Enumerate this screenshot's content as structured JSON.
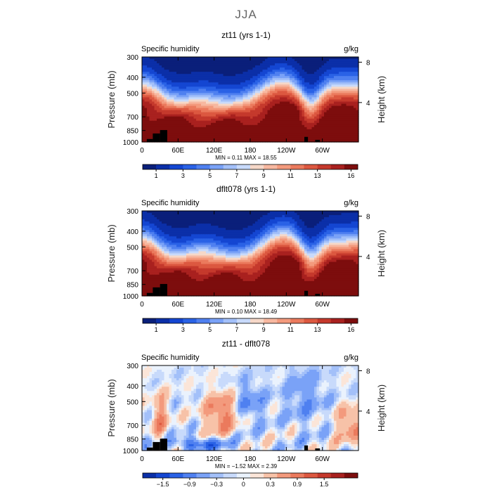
{
  "page_title": "JJA",
  "colors": {
    "contour_palette": [
      "#0a1f7a",
      "#0b2fa8",
      "#1446d2",
      "#2a62e6",
      "#4f80f0",
      "#7aa2f7",
      "#a3c0f9",
      "#c8dafb",
      "#f6d8c8",
      "#f7b8a0",
      "#f39a7d",
      "#eb7a5d",
      "#dc5840",
      "#c5392c",
      "#a9211f",
      "#7d0d0d"
    ],
    "diff_palette": [
      "#0b2fa8",
      "#1446d2",
      "#2a62e6",
      "#4f80f0",
      "#7aa2f7",
      "#a3c0f9",
      "#c8dafb",
      "#eaf2fd",
      "#fbe5d8",
      "#f7c2a8",
      "#f39a7d",
      "#eb7a5d",
      "#dc5840",
      "#c5392c",
      "#a9211f",
      "#7d0d0d"
    ],
    "topography": "#000000"
  },
  "chart_data": [
    {
      "type": "heatmap",
      "title": "zt11 (yrs 1-1)",
      "left_label": "Specific humidity",
      "right_label": "g/kg",
      "ylabel": "Pressure (mb)",
      "y2label": "Height (km)",
      "pressure_ticks": [
        "300",
        "400",
        "500",
        "700",
        "850",
        "1000"
      ],
      "height_ticks": [
        "8",
        "4"
      ],
      "lon_ticks": [
        "0",
        "60E",
        "120E",
        "180",
        "120W",
        "60W"
      ],
      "stats": "MIN =      0.11   MAX =    18.55",
      "colorbar_ticks": [
        "1",
        "3",
        "5",
        "7",
        "9",
        "11",
        "13",
        "16"
      ],
      "field": "humidity_run1"
    },
    {
      "type": "heatmap",
      "title": "dflt078 (yrs 1-1)",
      "left_label": "Specific humidity",
      "right_label": "g/kg",
      "ylabel": "Pressure (mb)",
      "y2label": "Height (km)",
      "pressure_ticks": [
        "300",
        "400",
        "500",
        "700",
        "850",
        "1000"
      ],
      "height_ticks": [
        "8",
        "4"
      ],
      "lon_ticks": [
        "0",
        "60E",
        "120E",
        "180",
        "120W",
        "60W"
      ],
      "stats": "MIN =      0.10   MAX =    18.49",
      "colorbar_ticks": [
        "1",
        "3",
        "5",
        "7",
        "9",
        "11",
        "13",
        "16"
      ],
      "field": "humidity_run2"
    },
    {
      "type": "heatmap",
      "title": "zt11 - dflt078",
      "left_label": "Specific humidity",
      "right_label": "g/kg",
      "ylabel": "Pressure (mb)",
      "y2label": "Height (km)",
      "pressure_ticks": [
        "300",
        "400",
        "500",
        "700",
        "850",
        "1000"
      ],
      "height_ticks": [
        "8",
        "4"
      ],
      "lon_ticks": [
        "0",
        "60E",
        "120E",
        "180",
        "120W",
        "60W"
      ],
      "stats": "MIN =    −1.52   MAX =     2.39",
      "colorbar_ticks": [
        "−1.5",
        "−0.9",
        "−0.3",
        "0",
        "0.3",
        "0.9",
        "1.5"
      ],
      "field": "difference"
    }
  ]
}
